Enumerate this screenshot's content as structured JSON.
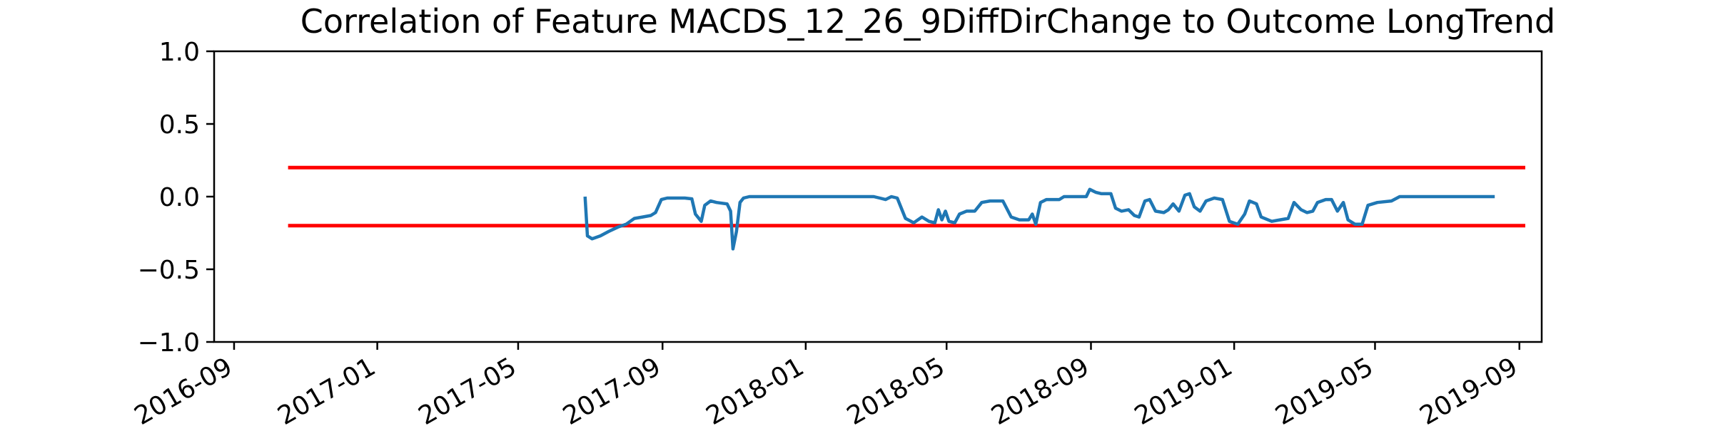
{
  "chart_data": {
    "type": "line",
    "title": "Correlation of Feature MACDS_12_26_9DiffDirChange to Outcome LongTrend",
    "xlabel": "",
    "ylabel": "",
    "x_axis_type": "date",
    "xlim": [
      "2016-08-15",
      "2019-09-20"
    ],
    "ylim": [
      -1.0,
      1.0
    ],
    "x_ticks": [
      "2016-09",
      "2017-01",
      "2017-05",
      "2017-09",
      "2018-01",
      "2018-05",
      "2018-09",
      "2019-01",
      "2019-05",
      "2019-09"
    ],
    "y_ticks": [
      "1.0",
      "0.5",
      "0.0",
      "−0.5",
      "−1.0"
    ],
    "y_tick_values": [
      1.0,
      0.5,
      0.0,
      -0.5,
      -1.0
    ],
    "grid": false,
    "legend": "none",
    "series": [
      {
        "color": "#1f77b4",
        "points": [
          [
            "2017-06-27",
            0.0
          ],
          [
            "2017-06-29",
            -0.27
          ],
          [
            "2017-07-03",
            -0.29
          ],
          [
            "2017-07-10",
            -0.27
          ],
          [
            "2017-07-17",
            -0.24
          ],
          [
            "2017-07-25",
            -0.21
          ],
          [
            "2017-08-01",
            -0.19
          ],
          [
            "2017-08-08",
            -0.15
          ],
          [
            "2017-08-15",
            -0.14
          ],
          [
            "2017-08-22",
            -0.13
          ],
          [
            "2017-08-26",
            -0.11
          ],
          [
            "2017-08-31",
            -0.02
          ],
          [
            "2017-09-05",
            -0.01
          ],
          [
            "2017-09-20",
            -0.01
          ],
          [
            "2017-09-26",
            -0.015
          ],
          [
            "2017-09-29",
            -0.12
          ],
          [
            "2017-10-04",
            -0.17
          ],
          [
            "2017-10-07",
            -0.06
          ],
          [
            "2017-10-12",
            -0.03
          ],
          [
            "2017-10-17",
            -0.04
          ],
          [
            "2017-10-26",
            -0.05
          ],
          [
            "2017-10-29",
            -0.1
          ],
          [
            "2017-10-31",
            -0.36
          ],
          [
            "2017-11-03",
            -0.24
          ],
          [
            "2017-11-06",
            -0.04
          ],
          [
            "2017-11-09",
            -0.01
          ],
          [
            "2017-11-14",
            0.0
          ],
          [
            "2018-02-28",
            0.0
          ],
          [
            "2018-03-05",
            -0.01
          ],
          [
            "2018-03-10",
            -0.02
          ],
          [
            "2018-03-15",
            0.0
          ],
          [
            "2018-03-20",
            -0.01
          ],
          [
            "2018-03-27",
            -0.15
          ],
          [
            "2018-04-03",
            -0.18
          ],
          [
            "2018-04-10",
            -0.14
          ],
          [
            "2018-04-16",
            -0.17
          ],
          [
            "2018-04-21",
            -0.18
          ],
          [
            "2018-04-24",
            -0.09
          ],
          [
            "2018-04-27",
            -0.16
          ],
          [
            "2018-04-30",
            -0.1
          ],
          [
            "2018-05-03",
            -0.17
          ],
          [
            "2018-05-08",
            -0.18
          ],
          [
            "2018-05-12",
            -0.12
          ],
          [
            "2018-05-18",
            -0.1
          ],
          [
            "2018-05-25",
            -0.1
          ],
          [
            "2018-05-31",
            -0.04
          ],
          [
            "2018-06-07",
            -0.03
          ],
          [
            "2018-06-18",
            -0.03
          ],
          [
            "2018-06-25",
            -0.14
          ],
          [
            "2018-07-02",
            -0.16
          ],
          [
            "2018-07-10",
            -0.16
          ],
          [
            "2018-07-13",
            -0.12
          ],
          [
            "2018-07-16",
            -0.19
          ],
          [
            "2018-07-20",
            -0.04
          ],
          [
            "2018-07-25",
            -0.02
          ],
          [
            "2018-08-05",
            -0.02
          ],
          [
            "2018-08-09",
            0.0
          ],
          [
            "2018-08-28",
            0.0
          ],
          [
            "2018-08-31",
            0.05
          ],
          [
            "2018-09-05",
            0.03
          ],
          [
            "2018-09-10",
            0.02
          ],
          [
            "2018-09-18",
            0.02
          ],
          [
            "2018-09-22",
            -0.08
          ],
          [
            "2018-09-27",
            -0.1
          ],
          [
            "2018-10-03",
            -0.09
          ],
          [
            "2018-10-08",
            -0.13
          ],
          [
            "2018-10-12",
            -0.14
          ],
          [
            "2018-10-17",
            -0.03
          ],
          [
            "2018-10-21",
            -0.02
          ],
          [
            "2018-10-26",
            -0.1
          ],
          [
            "2018-11-02",
            -0.11
          ],
          [
            "2018-11-06",
            -0.09
          ],
          [
            "2018-11-10",
            -0.05
          ],
          [
            "2018-11-15",
            -0.1
          ],
          [
            "2018-11-20",
            0.01
          ],
          [
            "2018-11-24",
            0.02
          ],
          [
            "2018-11-28",
            -0.07
          ],
          [
            "2018-12-03",
            -0.1
          ],
          [
            "2018-12-08",
            -0.03
          ],
          [
            "2018-12-15",
            -0.01
          ],
          [
            "2018-12-22",
            -0.02
          ],
          [
            "2018-12-28",
            -0.17
          ],
          [
            "2019-01-04",
            -0.19
          ],
          [
            "2019-01-10",
            -0.12
          ],
          [
            "2019-01-14",
            -0.03
          ],
          [
            "2019-01-20",
            -0.05
          ],
          [
            "2019-01-24",
            -0.14
          ],
          [
            "2019-02-02",
            -0.17
          ],
          [
            "2019-02-09",
            -0.16
          ],
          [
            "2019-02-16",
            -0.15
          ],
          [
            "2019-02-21",
            -0.04
          ],
          [
            "2019-02-27",
            -0.09
          ],
          [
            "2019-03-04",
            -0.11
          ],
          [
            "2019-03-09",
            -0.1
          ],
          [
            "2019-03-13",
            -0.04
          ],
          [
            "2019-03-20",
            -0.02
          ],
          [
            "2019-03-25",
            -0.02
          ],
          [
            "2019-03-30",
            -0.1
          ],
          [
            "2019-04-04",
            -0.04
          ],
          [
            "2019-04-08",
            -0.16
          ],
          [
            "2019-04-14",
            -0.19
          ],
          [
            "2019-04-20",
            -0.19
          ],
          [
            "2019-04-25",
            -0.06
          ],
          [
            "2019-05-03",
            -0.04
          ],
          [
            "2019-05-15",
            -0.03
          ],
          [
            "2019-05-22",
            0.0
          ],
          [
            "2019-08-11",
            0.0
          ]
        ]
      }
    ],
    "reference_lines": [
      {
        "y": 0.2,
        "x_start": "2016-10-17",
        "x_end": "2019-09-06",
        "color": "#ff0000"
      },
      {
        "y": -0.2,
        "x_start": "2016-10-17",
        "x_end": "2019-09-06",
        "color": "#ff0000"
      }
    ]
  }
}
